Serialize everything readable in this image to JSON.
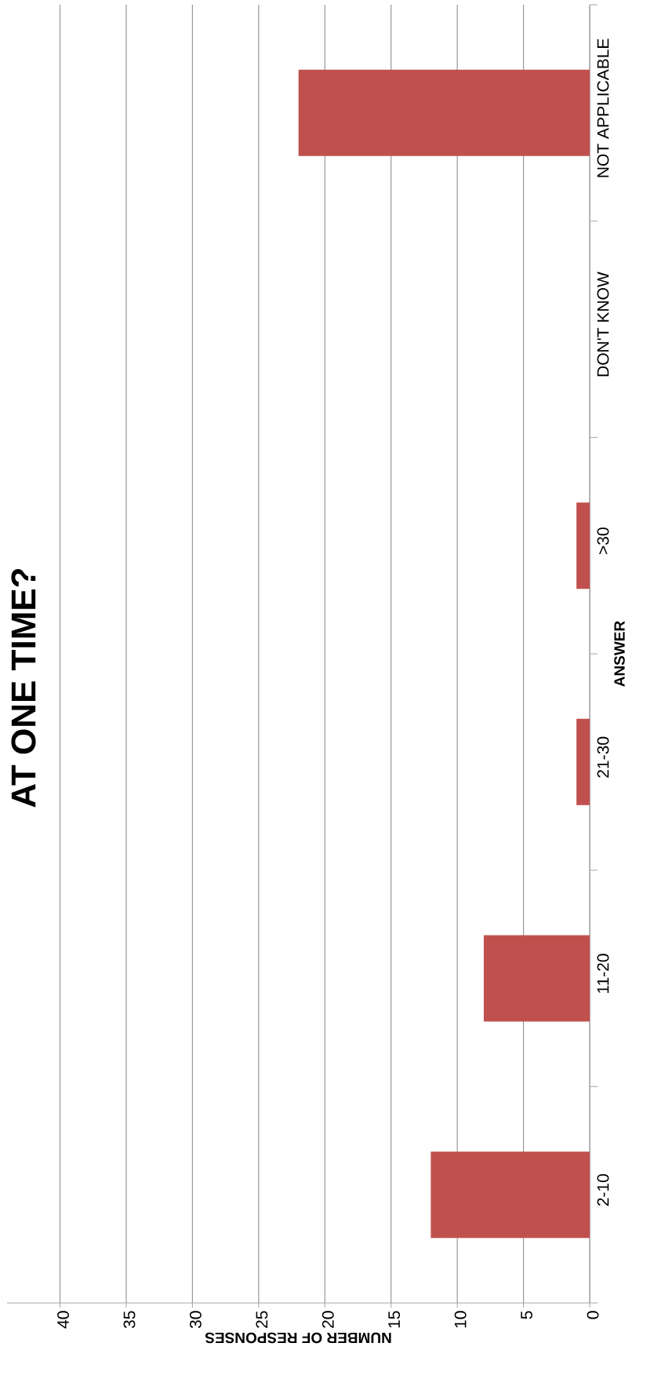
{
  "chart_data": {
    "type": "bar",
    "orientation": "horizontal",
    "title": "AT ONE TIME?",
    "xlabel": "NUMBER OF RESPONSES",
    "ylabel": "ANSWER",
    "categories": [
      "NOT APPLICABLE",
      "DON'T KNOW",
      ">30",
      "21-30",
      "11-20",
      "2-10"
    ],
    "values": [
      22,
      0,
      1,
      1,
      8,
      12
    ],
    "color": "#c0504d",
    "xlim": [
      44,
      0
    ],
    "xticks": [
      0,
      5,
      10,
      15,
      20,
      25,
      30,
      35,
      40
    ],
    "grid": "x"
  }
}
